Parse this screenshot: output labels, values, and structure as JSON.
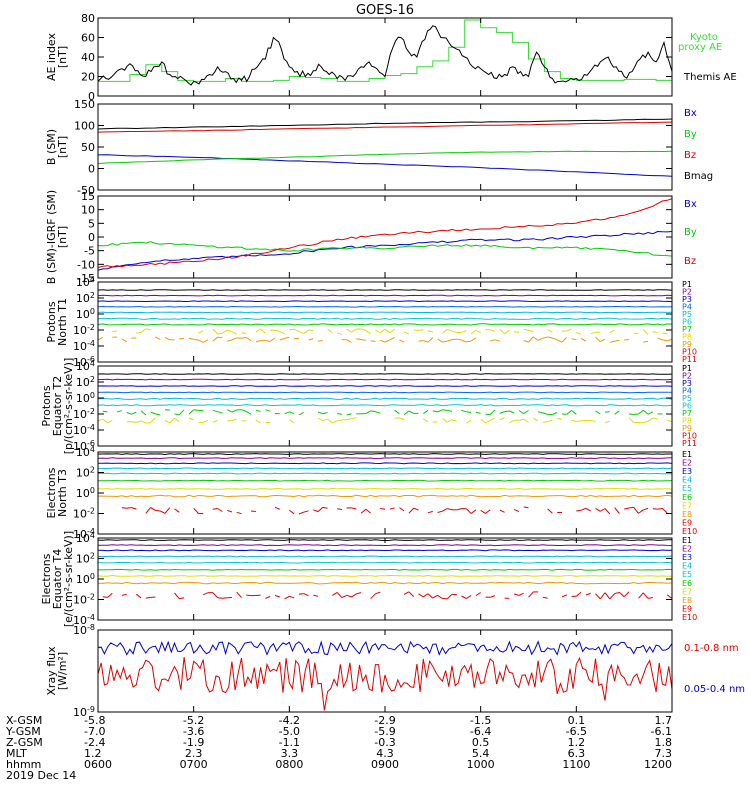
{
  "title": "GOES-16",
  "colors": {
    "black": "#000000",
    "green": "#00cc00",
    "kyoto": "#33dd33",
    "blue": "#0000cc",
    "red": "#dd0000",
    "cyan": "#00bbdd",
    "teal": "#00cccc",
    "yellow": "#dddd00",
    "orange": "#ee9900"
  },
  "chart_data": [
    {
      "type": "line",
      "id": "ae",
      "ylabel": [
        "AE index",
        "[nT]"
      ],
      "ylim": [
        0,
        80
      ],
      "yticks": [
        "80",
        "60",
        "40",
        "20",
        "0"
      ],
      "x_range": [
        "0600",
        "1200"
      ],
      "series": [
        {
          "name": "Kyoto proxy AE",
          "color": "#33dd33",
          "x": [
            0,
            10,
            20,
            30,
            40,
            50,
            60,
            70,
            80,
            90,
            100,
            110,
            120,
            130,
            140,
            150,
            160,
            170,
            180,
            190,
            200,
            210,
            220,
            230,
            240,
            250,
            260,
            270,
            280,
            290,
            300,
            310,
            320,
            330,
            340,
            350,
            360
          ],
          "values": [
            15,
            15,
            22,
            32,
            25,
            16,
            15,
            15,
            18,
            15,
            15,
            16,
            20,
            19,
            18,
            15,
            15,
            18,
            21,
            23,
            30,
            36,
            50,
            78,
            70,
            65,
            55,
            38,
            25,
            18,
            16,
            16,
            16,
            17,
            17,
            16,
            17
          ]
        },
        {
          "name": "Themis AE",
          "color": "#000000",
          "x": [
            0,
            5,
            10,
            15,
            20,
            25,
            30,
            35,
            40,
            45,
            50,
            55,
            60,
            65,
            70,
            75,
            80,
            85,
            90,
            95,
            100,
            105,
            110,
            115,
            120,
            125,
            130,
            135,
            140,
            145,
            150,
            155,
            160,
            165,
            170,
            175,
            180,
            185,
            190,
            195,
            200,
            205,
            210,
            215,
            220,
            225,
            230,
            235,
            240,
            245,
            250,
            255,
            260,
            265,
            270,
            275,
            280,
            285,
            290,
            295,
            300,
            305,
            310,
            315,
            320,
            325,
            330,
            335,
            340,
            345,
            350,
            355,
            360
          ],
          "values": [
            15,
            18,
            22,
            28,
            33,
            26,
            20,
            30,
            35,
            22,
            18,
            16,
            15,
            17,
            22,
            30,
            25,
            18,
            16,
            20,
            30,
            38,
            60,
            48,
            30,
            25,
            20,
            26,
            30,
            22,
            18,
            16,
            20,
            30,
            35,
            28,
            20,
            50,
            60,
            45,
            40,
            58,
            72,
            60,
            55,
            48,
            40,
            30,
            28,
            22,
            18,
            22,
            30,
            25,
            20,
            45,
            30,
            18,
            15,
            16,
            18,
            22,
            28,
            35,
            40,
            30,
            20,
            25,
            38,
            45,
            35,
            55,
            25
          ]
        }
      ]
    },
    {
      "type": "line",
      "id": "bsm",
      "ylabel": [
        "B (SM)",
        "[nT]"
      ],
      "ylim": [
        -50,
        150
      ],
      "yticks": [
        "150",
        "100",
        "50",
        "0",
        "-50"
      ],
      "x_range": [
        "0600",
        "1200"
      ],
      "series": [
        {
          "name": "Bx",
          "color": "#0000cc",
          "x": [
            0,
            60,
            120,
            180,
            240,
            300,
            360
          ],
          "values": [
            32,
            26,
            18,
            10,
            2,
            -8,
            -18
          ]
        },
        {
          "name": "By",
          "color": "#00cc00",
          "x": [
            0,
            60,
            120,
            180,
            240,
            300,
            360
          ],
          "values": [
            12,
            20,
            26,
            33,
            38,
            40,
            40
          ]
        },
        {
          "name": "Bz",
          "color": "#dd0000",
          "x": [
            0,
            60,
            120,
            180,
            240,
            300,
            360
          ],
          "values": [
            85,
            88,
            92,
            96,
            100,
            104,
            108
          ]
        },
        {
          "name": "Bmag",
          "color": "#000000",
          "x": [
            0,
            60,
            120,
            180,
            240,
            300,
            360
          ],
          "values": [
            92,
            96,
            100,
            105,
            108,
            111,
            115
          ]
        }
      ]
    },
    {
      "type": "line",
      "id": "bigrf",
      "ylabel": [
        "B (SM)-IGRF (SM)",
        "[nT]"
      ],
      "ylim": [
        -15,
        15
      ],
      "yticks": [
        "15",
        "10",
        "5",
        "0",
        "-5",
        "-10",
        "-15"
      ],
      "x_range": [
        "0600",
        "1200"
      ],
      "series": [
        {
          "name": "Bx",
          "color": "#0000cc",
          "x": [
            0,
            30,
            60,
            90,
            120,
            150,
            180,
            210,
            240,
            270,
            300,
            330,
            360
          ],
          "values": [
            -12,
            -9,
            -8,
            -7,
            -6,
            -4,
            -3,
            -2,
            -1,
            -1,
            0,
            1,
            2
          ]
        },
        {
          "name": "By",
          "color": "#00cc00",
          "x": [
            0,
            30,
            60,
            90,
            120,
            150,
            180,
            210,
            240,
            270,
            300,
            330,
            360
          ],
          "values": [
            -3,
            -2,
            -3,
            -4,
            -5,
            -4,
            -4,
            -3,
            -3,
            -4,
            -4,
            -5,
            -7
          ]
        },
        {
          "name": "Bz",
          "color": "#dd0000",
          "x": [
            0,
            30,
            60,
            90,
            120,
            150,
            180,
            210,
            240,
            270,
            300,
            330,
            360
          ],
          "values": [
            -11,
            -10,
            -9,
            -7,
            -4,
            -1,
            1,
            2,
            3,
            4,
            5,
            8,
            14
          ]
        }
      ]
    },
    {
      "type": "line",
      "id": "protons_t1",
      "ylabel": [
        "Protons",
        "North T1"
      ],
      "ylim": [
        -6,
        4
      ],
      "log": true,
      "yticks": [
        "10^4",
        "10^2",
        "10^0",
        "10^-2",
        "10^-4",
        "10^-6"
      ],
      "x_range": [
        "0600",
        "1200"
      ],
      "series": [
        {
          "name": "P1",
          "color": "#000000",
          "values": [
            3.0
          ]
        },
        {
          "name": "P2",
          "color": "#880088",
          "values": [
            2.3
          ]
        },
        {
          "name": "P3",
          "color": "#0000cc",
          "values": [
            1.6
          ]
        },
        {
          "name": "P4",
          "color": "#0066ff",
          "values": [
            0.9
          ]
        },
        {
          "name": "P5",
          "color": "#00bbdd",
          "values": [
            0.2
          ]
        },
        {
          "name": "P6",
          "color": "#00cccc",
          "values": [
            -0.6
          ]
        },
        {
          "name": "P7",
          "color": "#00cc00",
          "values": [
            -1.3
          ]
        },
        {
          "name": "P8",
          "color": "#dddd00",
          "values": [
            -2.2
          ]
        },
        {
          "name": "P9",
          "color": "#ee9900",
          "values": [
            -3.2
          ]
        },
        {
          "name": "P10",
          "color": "#dd0000",
          "values": []
        },
        {
          "name": "P11",
          "color": "#dd0000",
          "values": []
        }
      ]
    },
    {
      "type": "line",
      "id": "protons_t2",
      "ylabel": [
        "Protons",
        "Equator T2",
        "[p/(cm²-s-sr-keV)]"
      ],
      "ylim": [
        -6,
        4
      ],
      "log": true,
      "yticks": [
        "10^4",
        "10^2",
        "10^0",
        "10^-2",
        "10^-4",
        "10^-6"
      ],
      "x_range": [
        "0600",
        "1200"
      ],
      "series": [
        {
          "name": "P1",
          "color": "#000000",
          "values": [
            3.0
          ]
        },
        {
          "name": "P2",
          "color": "#880088",
          "values": [
            2.3
          ]
        },
        {
          "name": "P3",
          "color": "#0000cc",
          "values": [
            1.5
          ]
        },
        {
          "name": "P4",
          "color": "#0066ff",
          "values": [
            0.7
          ]
        },
        {
          "name": "P5",
          "color": "#00bbdd",
          "values": [
            -0.1
          ]
        },
        {
          "name": "P6",
          "color": "#00cccc",
          "values": [
            -0.9
          ]
        },
        {
          "name": "P7",
          "color": "#00cc00",
          "values": [
            -1.8
          ]
        },
        {
          "name": "P8",
          "color": "#dddd00",
          "values": [
            -2.8
          ]
        },
        {
          "name": "P9",
          "color": "#ee9900",
          "values": []
        },
        {
          "name": "P10",
          "color": "#dd0000",
          "values": []
        },
        {
          "name": "P11",
          "color": "#dd0000",
          "values": []
        }
      ]
    },
    {
      "type": "line",
      "id": "electrons_t3",
      "ylabel": [
        "Electrons",
        "North T3"
      ],
      "ylim": [
        -4,
        4
      ],
      "log": true,
      "yticks": [
        "10^4",
        "10^2",
        "10^0",
        "10^-2",
        "10^-4"
      ],
      "x_range": [
        "0600",
        "1200"
      ],
      "series": [
        {
          "name": "E1",
          "color": "#000000",
          "values": [
            3.8
          ]
        },
        {
          "name": "E2",
          "color": "#880088",
          "values": [
            3.4
          ]
        },
        {
          "name": "E3",
          "color": "#0000cc",
          "values": [
            2.9
          ]
        },
        {
          "name": "E4",
          "color": "#00bbdd",
          "values": [
            2.4
          ]
        },
        {
          "name": "E5",
          "color": "#00cccc",
          "values": [
            1.9
          ]
        },
        {
          "name": "E6",
          "color": "#00cc00",
          "values": [
            1.2
          ]
        },
        {
          "name": "E7",
          "color": "#dddd00",
          "values": [
            0.4
          ]
        },
        {
          "name": "E8",
          "color": "#ee9900",
          "values": [
            -0.3
          ]
        },
        {
          "name": "E9",
          "color": "#dd0000",
          "values": [
            -1.7
          ]
        },
        {
          "name": "E10",
          "color": "#dd0000",
          "values": []
        }
      ]
    },
    {
      "type": "line",
      "id": "electrons_t4",
      "ylabel": [
        "Electrons",
        "Equator T4",
        "[e/(cm²-s-sr-keV)]"
      ],
      "ylim": [
        -4,
        4
      ],
      "log": true,
      "yticks": [
        "10^4",
        "10^2",
        "10^0",
        "10^-2",
        "10^-4"
      ],
      "x_range": [
        "0600",
        "1200"
      ],
      "series": [
        {
          "name": "E1",
          "color": "#000000",
          "values": [
            3.8
          ]
        },
        {
          "name": "E2",
          "color": "#880088",
          "values": [
            3.3
          ]
        },
        {
          "name": "E3",
          "color": "#0000cc",
          "values": [
            2.8
          ]
        },
        {
          "name": "E4",
          "color": "#00bbdd",
          "values": [
            2.2
          ]
        },
        {
          "name": "E5",
          "color": "#00cccc",
          "values": [
            1.6
          ]
        },
        {
          "name": "E6",
          "color": "#00cc00",
          "values": [
            0.9
          ]
        },
        {
          "name": "E7",
          "color": "#dddd00",
          "values": [
            0.3
          ]
        },
        {
          "name": "E8",
          "color": "#ee9900",
          "values": [
            -0.4
          ]
        },
        {
          "name": "E9",
          "color": "#dd0000",
          "values": [
            -1.6
          ]
        },
        {
          "name": "E10",
          "color": "#dd0000",
          "values": []
        }
      ]
    },
    {
      "type": "line",
      "id": "xray",
      "ylabel": [
        "Xray flux",
        "[W/m²]"
      ],
      "ylim": [
        -9,
        -8
      ],
      "log": true,
      "yticks": [
        "10^-8",
        "10^-9"
      ],
      "x_range": [
        "0600",
        "1200"
      ],
      "series": [
        {
          "name": "0.1-0.8 nm",
          "color": "#dd0000",
          "values": [
            -8.55
          ]
        },
        {
          "name": "0.05-0.4 nm",
          "color": "#0000cc",
          "values": [
            -8.22
          ]
        }
      ]
    }
  ],
  "x_axis": {
    "row_labels": [
      "X-GSM",
      "Y-GSM",
      "Z-GSM",
      "MLT",
      "hhmm"
    ],
    "columns": [
      [
        "-5.8",
        "-7.0",
        "-2.4",
        "1.2",
        "0600"
      ],
      [
        "-5.2",
        "-3.6",
        "-1.9",
        "2.3",
        "0700"
      ],
      [
        "-4.2",
        "-5.0",
        "-1.1",
        "3.3",
        "0800"
      ],
      [
        "-2.9",
        "-5.9",
        "-0.3",
        "4.3",
        "0900"
      ],
      [
        "-1.5",
        "-6.4",
        "0.5",
        "5.4",
        "1000"
      ],
      [
        "0.1",
        "-6.5",
        "1.2",
        "6.3",
        "1100"
      ],
      [
        "1.7",
        "-6.1",
        "1.8",
        "7.3",
        "1200"
      ]
    ],
    "date": "2019 Dec 14"
  },
  "legends": {
    "ae": [
      {
        "text": "Kyoto",
        "color": "#33dd33"
      },
      {
        "text": "proxy AE",
        "color": "#33dd33"
      },
      {
        "text": "Themis AE",
        "color": "#000000"
      }
    ],
    "bsm": [
      {
        "text": "Bx",
        "color": "#0000cc"
      },
      {
        "text": "By",
        "color": "#00cc00"
      },
      {
        "text": "Bz",
        "color": "#dd0000"
      },
      {
        "text": "Bmag",
        "color": "#000000"
      }
    ],
    "bigrf": [
      {
        "text": "Bx",
        "color": "#0000cc"
      },
      {
        "text": "By",
        "color": "#00cc00"
      },
      {
        "text": "Bz",
        "color": "#dd0000"
      }
    ],
    "xray": [
      {
        "text": "0.1-0.8 nm",
        "color": "#dd0000"
      },
      {
        "text": "0.05-0.4 nm",
        "color": "#0000cc"
      }
    ]
  }
}
